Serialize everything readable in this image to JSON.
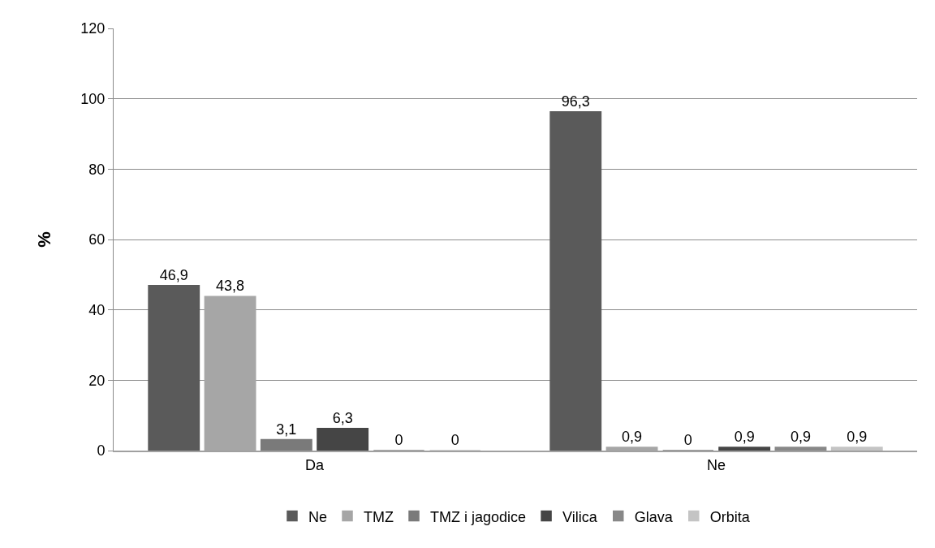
{
  "chart_data": {
    "type": "bar",
    "ylabel": "%",
    "categories": [
      "Da",
      "Ne"
    ],
    "series": [
      {
        "name": "Ne",
        "color": "#5a5a5a",
        "values": [
          46.9,
          96.3
        ],
        "value_labels": [
          "46,9",
          "96,3"
        ]
      },
      {
        "name": "TMZ",
        "color": "#a6a6a6",
        "values": [
          43.8,
          0.9
        ],
        "value_labels": [
          "43,8",
          "0,9"
        ]
      },
      {
        "name": "TMZ i jagodice",
        "color": "#7a7a7a",
        "values": [
          3.1,
          0
        ],
        "value_labels": [
          "3,1",
          "0"
        ]
      },
      {
        "name": "Vilica",
        "color": "#454545",
        "values": [
          6.3,
          0.9
        ],
        "value_labels": [
          "6,3",
          "0,9"
        ]
      },
      {
        "name": "Glava",
        "color": "#888888",
        "values": [
          0,
          0.9
        ],
        "value_labels": [
          "0",
          "0,9"
        ]
      },
      {
        "name": "Orbita",
        "color": "#c4c4c4",
        "values": [
          0,
          0.9
        ],
        "value_labels": [
          "0",
          "0,9"
        ]
      }
    ],
    "ylim": [
      0,
      120
    ],
    "yticks": [
      0,
      20,
      40,
      60,
      80,
      100,
      120
    ],
    "grid": "y",
    "legend": "bottom"
  }
}
